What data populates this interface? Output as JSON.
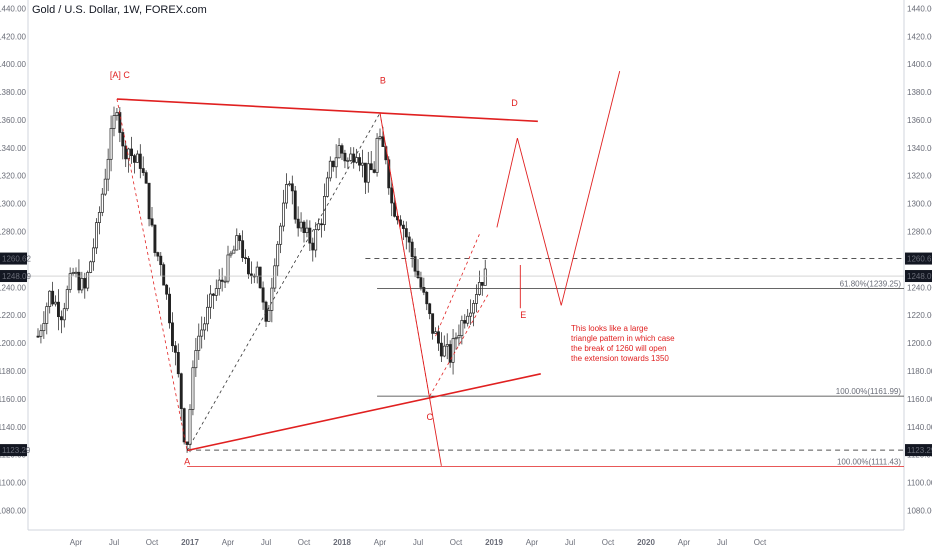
{
  "chart_data": {
    "type": "candlestick",
    "title": "Gold / U.S. Dollar, 1W, FOREX.com",
    "ylim": [
      1066,
      1446
    ],
    "y_ticks": [
      1080,
      1100,
      1120,
      1140,
      1160,
      1180,
      1200,
      1220,
      1240,
      1260,
      1280,
      1300,
      1320,
      1340,
      1360,
      1380,
      1400,
      1420,
      1440
    ],
    "x_ticks": [
      {
        "label": "Apr",
        "week": 13
      },
      {
        "label": "Jul",
        "week": 26
      },
      {
        "label": "Oct",
        "week": 39
      },
      {
        "label": "2017",
        "week": 52
      },
      {
        "label": "Apr",
        "week": 65
      },
      {
        "label": "Jul",
        "week": 78
      },
      {
        "label": "Oct",
        "week": 91
      },
      {
        "label": "2018",
        "week": 104
      },
      {
        "label": "Apr",
        "week": 117
      },
      {
        "label": "Jul",
        "week": 130
      },
      {
        "label": "Oct",
        "week": 143
      },
      {
        "label": "2019",
        "week": 156
      },
      {
        "label": "Apr",
        "week": 169
      },
      {
        "label": "Jul",
        "week": 182
      },
      {
        "label": "Oct",
        "week": 195
      },
      {
        "label": "2020",
        "week": 208
      },
      {
        "label": "Apr",
        "week": 221
      },
      {
        "label": "Jul",
        "week": 234
      },
      {
        "label": "Oct",
        "week": 247
      }
    ],
    "price_path": [
      [
        0,
        1205
      ],
      [
        4,
        1235
      ],
      [
        8,
        1222
      ],
      [
        12,
        1250
      ],
      [
        16,
        1238
      ],
      [
        20,
        1280
      ],
      [
        24,
        1335
      ],
      [
        27,
        1372
      ],
      [
        29,
        1338
      ],
      [
        31,
        1340
      ],
      [
        33,
        1330
      ],
      [
        35,
        1330
      ],
      [
        37,
        1310
      ],
      [
        40,
        1265
      ],
      [
        42,
        1260
      ],
      [
        45,
        1220
      ],
      [
        48,
        1175
      ],
      [
        50,
        1135
      ],
      [
        51,
        1130
      ],
      [
        54,
        1200
      ],
      [
        57,
        1215
      ],
      [
        60,
        1235
      ],
      [
        63,
        1245
      ],
      [
        66,
        1262
      ],
      [
        69,
        1275
      ],
      [
        72,
        1245
      ],
      [
        75,
        1258
      ],
      [
        78,
        1210
      ],
      [
        81,
        1262
      ],
      [
        84,
        1295
      ],
      [
        86,
        1320
      ],
      [
        88,
        1292
      ],
      [
        91,
        1278
      ],
      [
        94,
        1272
      ],
      [
        97,
        1290
      ],
      [
        100,
        1325
      ],
      [
        103,
        1340
      ],
      [
        106,
        1330
      ],
      [
        109,
        1340
      ],
      [
        112,
        1320
      ],
      [
        115,
        1325
      ],
      [
        116,
        1345
      ],
      [
        119,
        1335
      ],
      [
        121,
        1300
      ],
      [
        124,
        1290
      ],
      [
        127,
        1270
      ],
      [
        129,
        1255
      ],
      [
        131,
        1240
      ],
      [
        133,
        1225
      ],
      [
        135,
        1210
      ],
      [
        137,
        1200
      ],
      [
        139,
        1195
      ],
      [
        141,
        1190
      ],
      [
        143,
        1205
      ],
      [
        145,
        1215
      ],
      [
        147,
        1225
      ],
      [
        149,
        1232
      ],
      [
        151,
        1245
      ],
      [
        153,
        1248
      ]
    ],
    "levels": [
      {
        "price": 1260.62,
        "label": "1260.62",
        "style": "dashed"
      },
      {
        "price": 1248.09,
        "label": "1248.09",
        "style": "last"
      },
      {
        "price": 1123.29,
        "label": "1123.29",
        "style": "dashed"
      }
    ],
    "fib_levels": [
      {
        "price": 1239.25,
        "label": "61.80%(1239.25)"
      },
      {
        "price": 1161.99,
        "label": "100.00%(1161.99)"
      },
      {
        "price": 1111.43,
        "label": "100.00%(1111.43)"
      }
    ],
    "wave_labels": [
      {
        "text": "[A] C",
        "week": 28,
        "price": 1390
      },
      {
        "text": "B",
        "week": 118,
        "price": 1386
      },
      {
        "text": "D",
        "week": 163,
        "price": 1370
      },
      {
        "text": "A",
        "week": 51,
        "price": 1113
      },
      {
        "text": "C",
        "week": 134,
        "price": 1145
      },
      {
        "text": "E",
        "week": 166,
        "price": 1218
      }
    ],
    "annotation": "This looks like a large triangle pattern in which case the break of 1260 will open the extension towards 1350"
  }
}
